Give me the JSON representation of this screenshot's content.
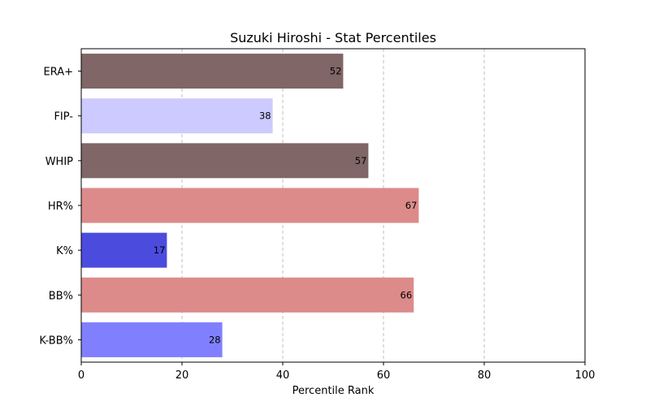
{
  "chart_data": {
    "type": "bar",
    "orientation": "horizontal",
    "title": "Suzuki Hiroshi - Stat Percentiles",
    "xlabel": "Percentile Rank",
    "ylabel": "",
    "xlim": [
      0,
      100
    ],
    "xticks": [
      0,
      20,
      40,
      60,
      80,
      100
    ],
    "grid": "x-dashed",
    "categories": [
      "ERA+",
      "FIP-",
      "WHIP",
      "HR%",
      "K%",
      "BB%",
      "K-BB%"
    ],
    "values": [
      52,
      38,
      57,
      67,
      17,
      66,
      28
    ],
    "colors": [
      "#806666",
      "#cccaff",
      "#806666",
      "#dd8a8a",
      "#4b4bde",
      "#dd8a8a",
      "#8080ff"
    ]
  }
}
